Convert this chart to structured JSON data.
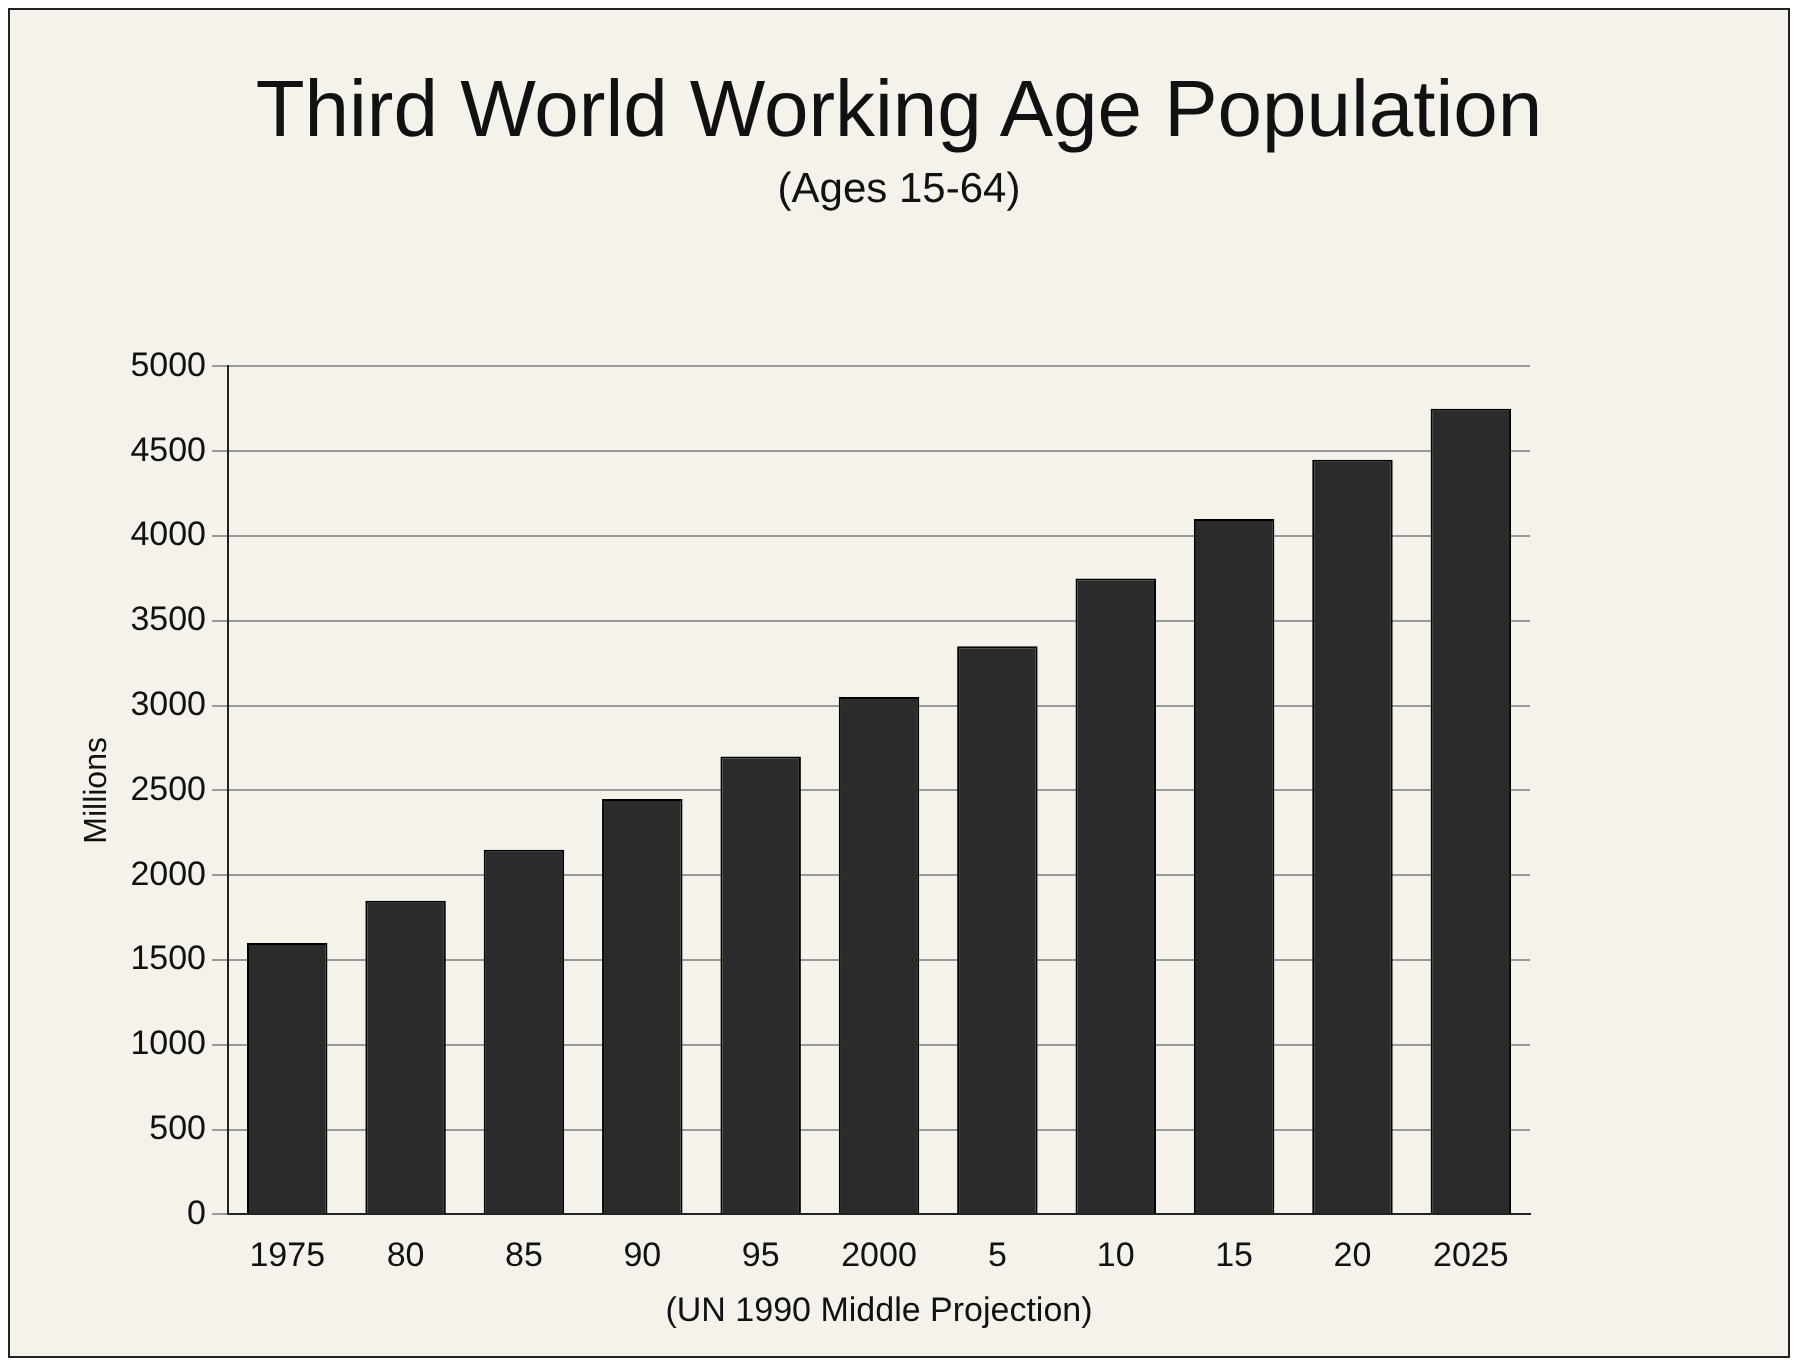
{
  "chart_data": {
    "type": "bar",
    "title": "Third World Working Age Population",
    "subtitle": "(Ages 15-64)",
    "xlabel": "(UN 1990 Middle Projection)",
    "ylabel": "Millions",
    "categories": [
      "1975",
      "80",
      "85",
      "90",
      "95",
      "2000",
      "5",
      "10",
      "15",
      "20",
      "2025"
    ],
    "values": [
      1600,
      1850,
      2150,
      2450,
      2700,
      3050,
      3350,
      3750,
      4100,
      4450,
      4750
    ],
    "color": "#2b2b2b",
    "ylim": [
      0,
      5000
    ],
    "yticks": [
      0,
      500,
      1000,
      1500,
      2000,
      2500,
      3000,
      3500,
      4000,
      4500,
      5000
    ],
    "grid": "y"
  }
}
